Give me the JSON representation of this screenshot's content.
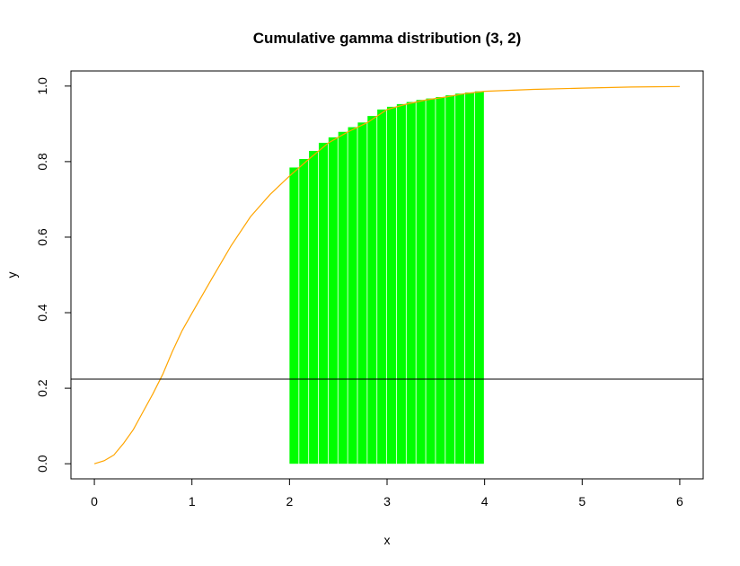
{
  "chart_data": {
    "type": "line",
    "title": "Cumulative gamma distribution (3, 2)",
    "xlabel": "x",
    "ylabel": "y",
    "xlim": [
      -0.24,
      6.24
    ],
    "ylim": [
      -0.04,
      1.04
    ],
    "x_ticks": [
      0,
      1,
      2,
      3,
      4,
      5,
      6
    ],
    "y_ticks": [
      0.0,
      0.2,
      0.4,
      0.6,
      0.8,
      1.0
    ],
    "x_tick_labels": [
      "0",
      "1",
      "2",
      "3",
      "4",
      "5",
      "6"
    ],
    "y_tick_labels": [
      "0.0",
      "0.2",
      "0.4",
      "0.6",
      "0.8",
      "1.0"
    ],
    "curve": {
      "color": "#FFA500",
      "x": [
        0,
        0.1,
        0.2,
        0.3,
        0.4,
        0.5,
        0.6,
        0.7,
        0.8,
        0.9,
        1.0,
        1.2,
        1.4,
        1.6,
        1.8,
        2.0,
        2.2,
        2.4,
        2.6,
        2.8,
        3.0,
        3.2,
        3.4,
        3.6,
        3.8,
        4.0,
        4.5,
        5.0,
        5.5,
        6.0
      ],
      "y": [
        0,
        0.0079,
        0.0231,
        0.0542,
        0.0907,
        0.1381,
        0.1853,
        0.2364,
        0.2975,
        0.3527,
        0.3985,
        0.4883,
        0.5765,
        0.654,
        0.7127,
        0.7619,
        0.8069,
        0.8498,
        0.8788,
        0.9036,
        0.938,
        0.9523,
        0.9633,
        0.971,
        0.98,
        0.9862,
        0.9912,
        0.9945,
        0.9975,
        0.9988
      ]
    },
    "shaded_region": {
      "color": "#00FF00",
      "x_from": 2,
      "x_to": 4,
      "step": 0.1
    },
    "hline": {
      "y": 0.224,
      "color": "#000000"
    }
  }
}
